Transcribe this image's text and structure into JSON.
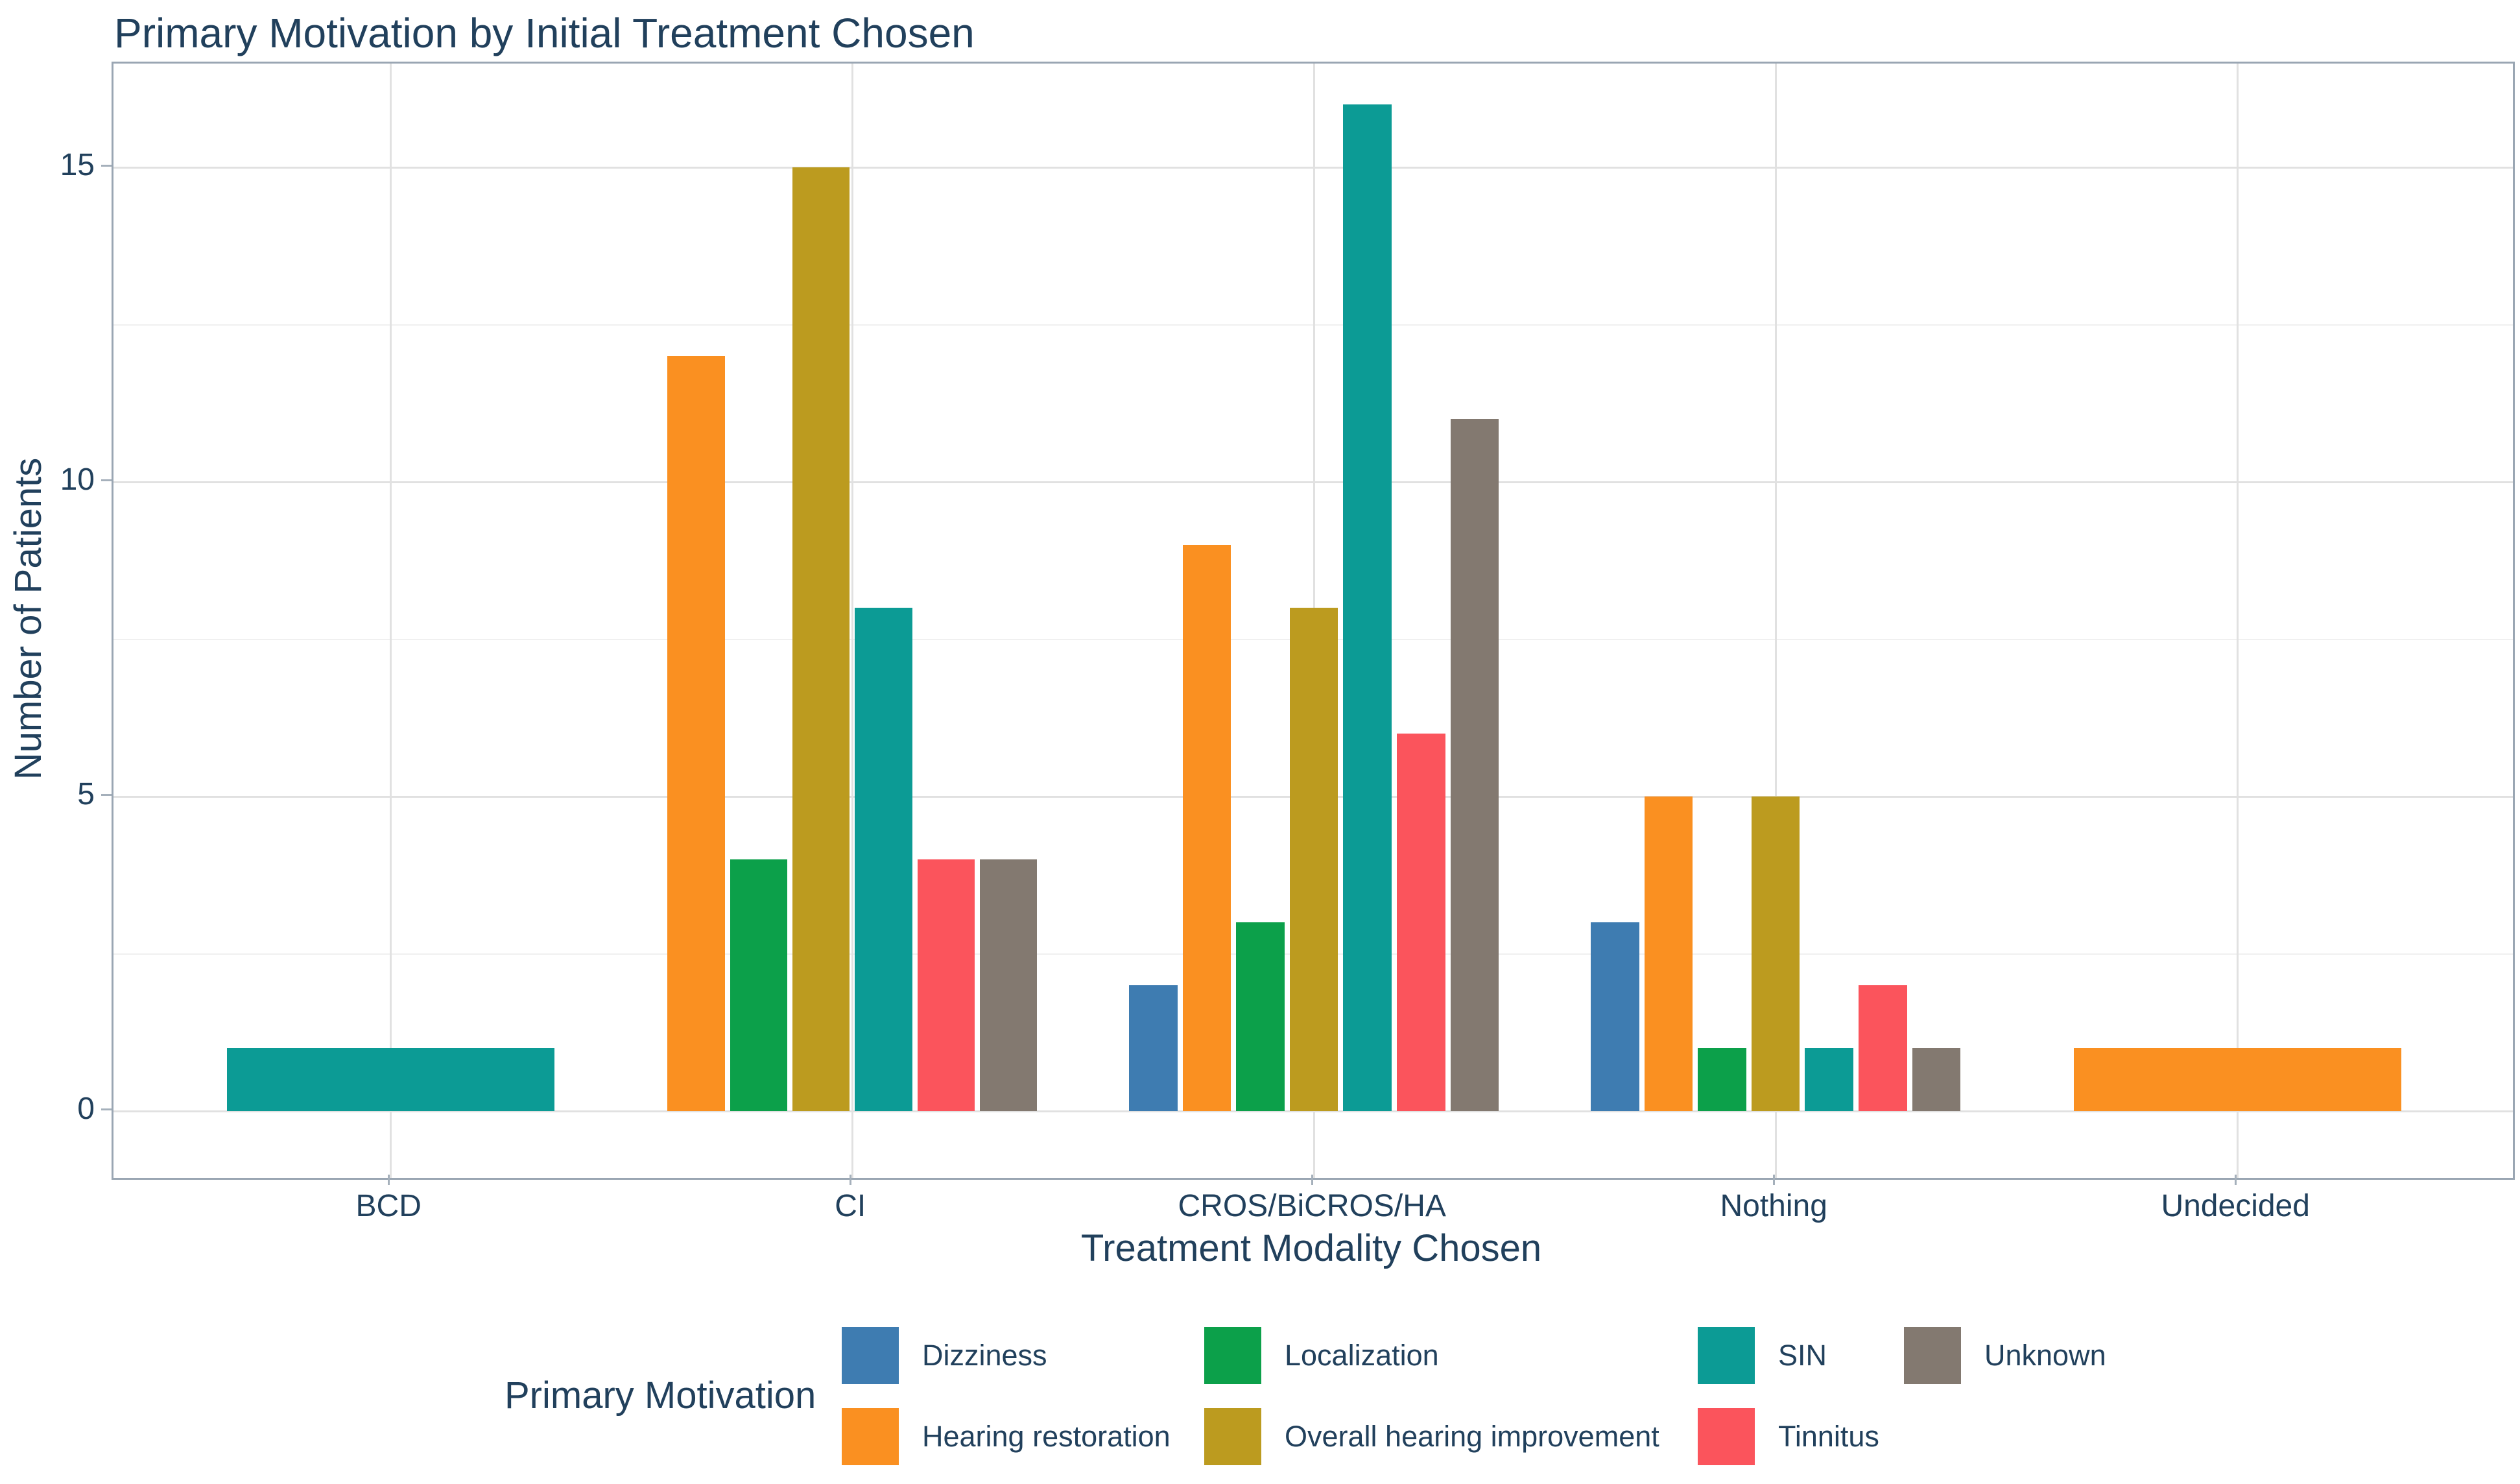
{
  "title": "Primary Motivation by Initial Treatment Chosen",
  "chart_data": {
    "type": "bar",
    "title": "Primary Motivation by Initial Treatment Chosen",
    "xlabel": "Treatment Modality Chosen",
    "ylabel": "Number of Patients",
    "legend_title": "Primary Motivation",
    "legend_position": "bottom",
    "grid": true,
    "ylim": [
      0,
      16.6
    ],
    "yticks": [
      0,
      5,
      10,
      15
    ],
    "yticks_minor": [
      2.5,
      7.5,
      12.5
    ],
    "categories": [
      "BCD",
      "CI",
      "CROS/BiCROS/HA",
      "Nothing",
      "Undecided"
    ],
    "series": [
      {
        "name": "Dizziness",
        "color": "#3E7CB1",
        "values": [
          0,
          0,
          2,
          3,
          0
        ]
      },
      {
        "name": "Hearing restoration",
        "color": "#FA9021",
        "values": [
          0,
          12,
          9,
          5,
          1
        ]
      },
      {
        "name": "Localization",
        "color": "#0CA04A",
        "values": [
          0,
          4,
          3,
          1,
          0
        ]
      },
      {
        "name": "Overall hearing improvement",
        "color": "#BC9B1F",
        "values": [
          0,
          15,
          8,
          5,
          0
        ]
      },
      {
        "name": "SIN",
        "color": "#0C9B95",
        "values": [
          1,
          8,
          16,
          1,
          0
        ]
      },
      {
        "name": "Tinnitus",
        "color": "#FB545C",
        "values": [
          0,
          4,
          6,
          2,
          0
        ]
      },
      {
        "name": "Unknown",
        "color": "#837970",
        "values": [
          0,
          4,
          11,
          1,
          0
        ]
      }
    ],
    "legend_layout": {
      "rows": 2,
      "fill": "column"
    }
  },
  "colors": {
    "text": "#21405C",
    "grid_major": "#E1E1E1",
    "grid_minor": "#F0F0F0",
    "panel_border": "#9AA6B3",
    "tick": "#A5B0BB",
    "background": "#FFFFFF"
  }
}
